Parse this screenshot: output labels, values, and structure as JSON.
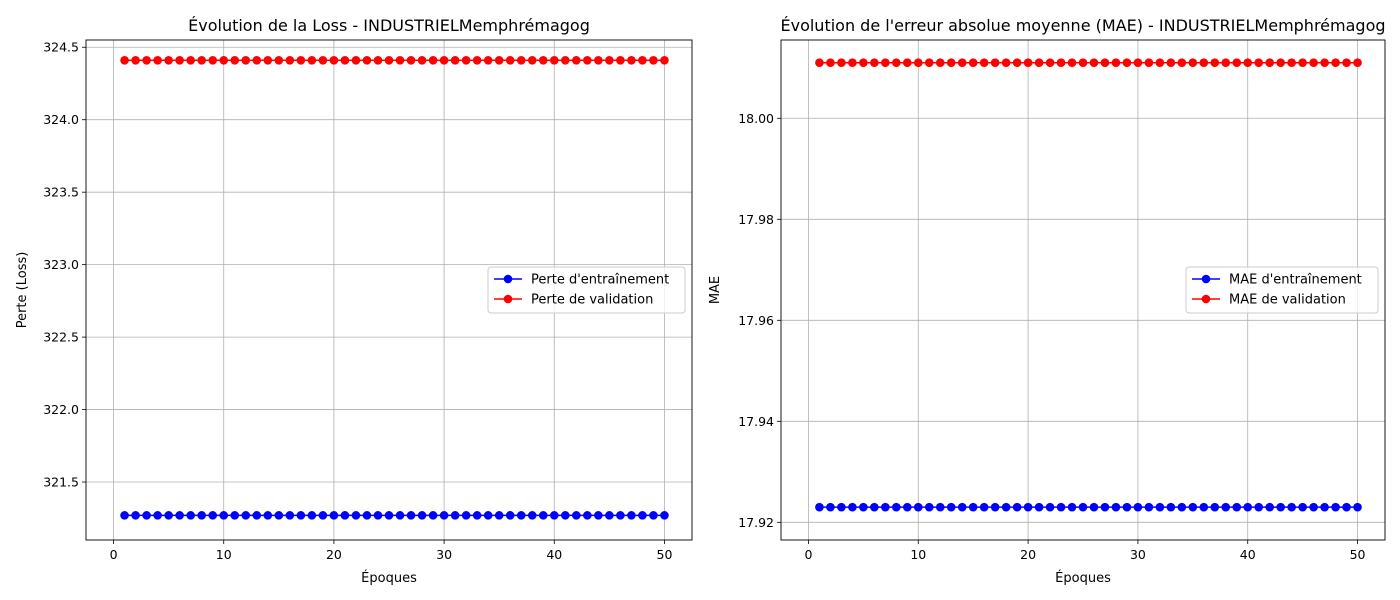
{
  "chart_data": [
    {
      "type": "line",
      "title": "Évolution de la Loss - INDUSTRIELMemphrémagog",
      "xlabel": "Époques",
      "ylabel": "Perte (Loss)",
      "xlim": [
        -2.5,
        52.5
      ],
      "ylim": [
        321.1,
        324.55
      ],
      "xticks": [
        0,
        10,
        20,
        30,
        40,
        50
      ],
      "yticks": [
        321.5,
        322.0,
        322.5,
        323.0,
        323.5,
        324.0,
        324.5
      ],
      "ytick_labels": [
        "321.5",
        "322.0",
        "322.5",
        "323.0",
        "323.5",
        "324.0",
        "324.5"
      ],
      "grid": true,
      "legend_position": "center-right",
      "x_start": 1,
      "x_end": 50,
      "series": [
        {
          "name": "Perte d'entraînement",
          "color": "#0000ff",
          "value": 321.27
        },
        {
          "name": "Perte de validation",
          "color": "#ff0000",
          "value": 324.41
        }
      ]
    },
    {
      "type": "line",
      "title": "Évolution de l'erreur absolue moyenne (MAE) - INDUSTRIELMemphrémagog",
      "xlabel": "Époques",
      "ylabel": "MAE",
      "xlim": [
        -2.5,
        52.5
      ],
      "ylim": [
        17.9165,
        18.0155
      ],
      "xticks": [
        0,
        10,
        20,
        30,
        40,
        50
      ],
      "yticks": [
        17.92,
        17.94,
        17.96,
        17.98,
        18.0
      ],
      "ytick_labels": [
        "17.92",
        "17.94",
        "17.96",
        "17.98",
        "18.00"
      ],
      "grid": true,
      "legend_position": "center-right",
      "x_start": 1,
      "x_end": 50,
      "series": [
        {
          "name": "MAE d'entraînement",
          "color": "#0000ff",
          "value": 17.923
        },
        {
          "name": "MAE de validation",
          "color": "#ff0000",
          "value": 18.011
        }
      ]
    }
  ]
}
